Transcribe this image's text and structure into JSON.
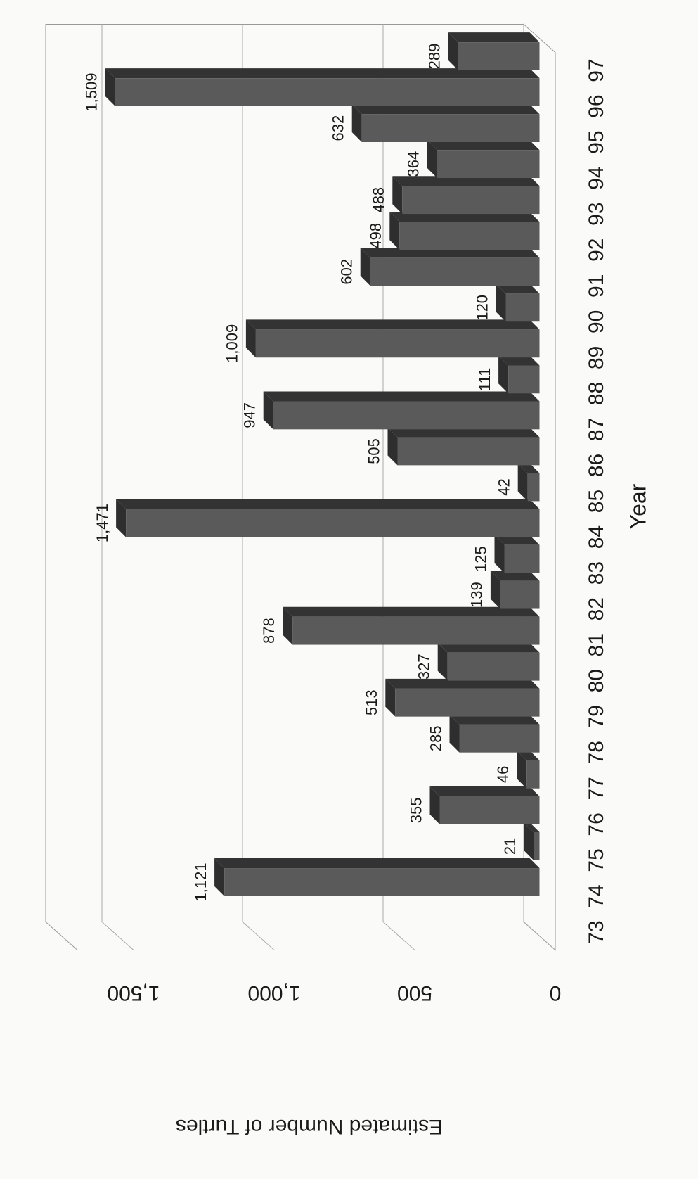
{
  "chart_data": {
    "type": "bar3d",
    "x_label": "Year",
    "y_label": "Estimated Number of Turtles",
    "categories": [
      "73",
      "74",
      "75",
      "76",
      "77",
      "78",
      "79",
      "80",
      "81",
      "82",
      "83",
      "84",
      "85",
      "86",
      "87",
      "88",
      "89",
      "90",
      "91",
      "92",
      "93",
      "94",
      "95",
      "96",
      "97"
    ],
    "values": [
      null,
      1121,
      21,
      355,
      46,
      285,
      513,
      327,
      878,
      139,
      125,
      1471,
      42,
      505,
      947,
      111,
      1009,
      120,
      602,
      498,
      488,
      364,
      632,
      1509,
      289
    ],
    "value_labels": [
      null,
      "1,121",
      "21",
      "355",
      "46",
      "285",
      "513",
      "327",
      "878",
      "139",
      "125",
      "1,471",
      "42",
      "505",
      "947",
      "111",
      "1,009",
      "120",
      "602",
      "498",
      "488",
      "364",
      "632",
      "1,509",
      "289"
    ],
    "color": "#5a5a5a",
    "ylim": [
      0,
      1700
    ],
    "yticks": [
      0,
      500,
      {
        "value": 1000,
        "label": "1,000"
      },
      {
        "value": 1500,
        "label": "1,500"
      }
    ],
    "grid": true
  }
}
